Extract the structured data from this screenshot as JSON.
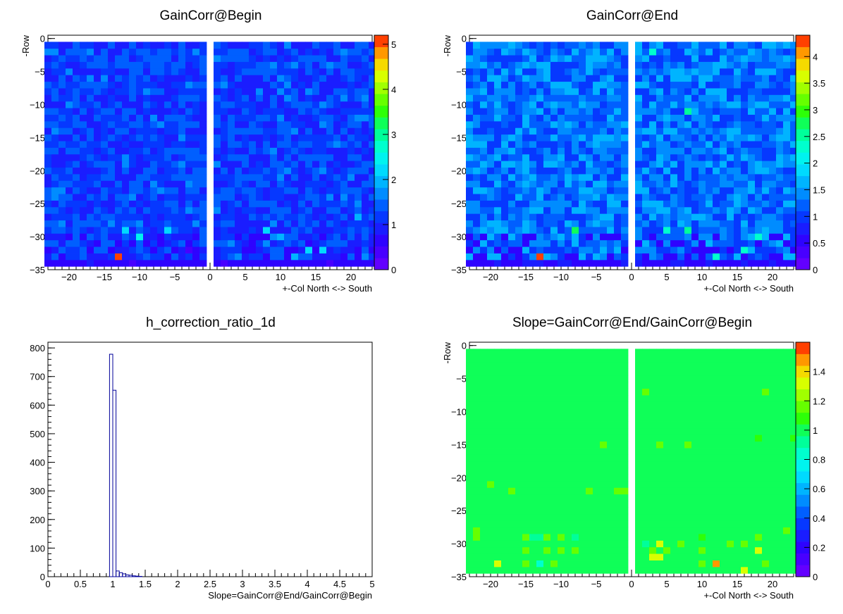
{
  "chart_data": [
    {
      "type": "heatmap",
      "title": "GainCorr@Begin",
      "xlabel": "+-Col North <-> South",
      "ylabel": "-Row",
      "xlim": [
        -23,
        23
      ],
      "ylim": [
        -35,
        0.5
      ],
      "xticks": [
        -20,
        -15,
        -10,
        -5,
        0,
        5,
        10,
        15,
        20
      ],
      "xtick_labels": [
        "−20",
        "−15",
        "−10",
        "−5",
        "0",
        "5",
        "10",
        "15",
        "20"
      ],
      "yticks": [
        0,
        -5,
        -10,
        -15,
        -20,
        -25,
        -30,
        -35
      ],
      "ytick_labels": [
        "0",
        "−5",
        "−10",
        "−15",
        "−20",
        "−25",
        "−30",
        "−35"
      ],
      "grid": false,
      "columns": {
        "north": [
          -23,
          -1
        ],
        "south": [
          1,
          23
        ]
      },
      "rows": [
        -34,
        -1
      ],
      "color_scale": {
        "min": 0,
        "max": 5.2,
        "ticks": [
          0,
          1,
          2,
          3,
          4,
          5
        ],
        "tick_labels": [
          "0",
          "1",
          "2",
          "3",
          "4",
          "5"
        ]
      },
      "typical_value": 1.2,
      "value_spread": 0.4,
      "low_rows_value": 0.65,
      "cells": [
        {
          "col": -13,
          "row": -33,
          "value": 5.0
        },
        {
          "col": -10,
          "row": -30,
          "value": 2.4
        },
        {
          "col": -6,
          "row": -29,
          "value": 2.3
        },
        {
          "col": -12,
          "row": -29,
          "value": 2.2
        },
        {
          "col": -3,
          "row": -32,
          "value": 0.5
        },
        {
          "col": 8,
          "row": -29,
          "value": 2.2
        },
        {
          "col": 16,
          "row": -32,
          "value": 2.1
        },
        {
          "col": 21,
          "row": -27,
          "value": 2.0
        },
        {
          "col": 10,
          "row": -30,
          "value": 2.0
        },
        {
          "col": 14,
          "row": -32,
          "value": 2.1
        },
        {
          "col": 12,
          "row": -33,
          "value": 1.9
        }
      ]
    },
    {
      "type": "heatmap",
      "title": "GainCorr@End",
      "xlabel": "+-Col North <-> South",
      "ylabel": "-Row",
      "xlim": [
        -23,
        23
      ],
      "ylim": [
        -35,
        0.5
      ],
      "xticks": [
        -20,
        -15,
        -10,
        -5,
        0,
        5,
        10,
        15,
        20
      ],
      "xtick_labels": [
        "−20",
        "−15",
        "−10",
        "−5",
        "0",
        "5",
        "10",
        "15",
        "20"
      ],
      "yticks": [
        0,
        -5,
        -10,
        -15,
        -20,
        -25,
        -30,
        -35
      ],
      "ytick_labels": [
        "0",
        "−5",
        "−10",
        "−15",
        "−20",
        "−25",
        "−30",
        "−35"
      ],
      "grid": false,
      "columns": {
        "north": [
          -23,
          -1
        ],
        "south": [
          1,
          23
        ]
      },
      "rows": [
        -34,
        -1
      ],
      "color_scale": {
        "min": 0,
        "max": 4.4,
        "ticks": [
          0,
          0.5,
          1,
          1.5,
          2,
          2.5,
          3,
          3.5,
          4
        ],
        "tick_labels": [
          "0",
          "0.5",
          "1",
          "1.5",
          "2",
          "2.5",
          "3",
          "3.5",
          "4"
        ]
      },
      "typical_value": 1.3,
      "value_spread": 0.4,
      "low_rows_value": 0.6,
      "cells": [
        {
          "col": -13,
          "row": -33,
          "value": 4.3
        },
        {
          "col": -8,
          "row": -29,
          "value": 2.8
        },
        {
          "col": 8,
          "row": -29,
          "value": 2.6
        },
        {
          "col": 5,
          "row": -29,
          "value": 2.4
        },
        {
          "col": 18,
          "row": -30,
          "value": 2.3
        },
        {
          "col": 8,
          "row": -11,
          "value": 2.6
        },
        {
          "col": 3,
          "row": -2,
          "value": 2.4
        },
        {
          "col": 12,
          "row": -33,
          "value": 2.3
        },
        {
          "col": 16,
          "row": -32,
          "value": 2.2
        }
      ]
    },
    {
      "type": "bar",
      "title": "h_correction_ratio_1d",
      "xlabel": "Slope=GainCorr@End/GainCorr@Begin",
      "ylabel": "",
      "xlim": [
        0,
        5
      ],
      "ylim": [
        0,
        820
      ],
      "xticks": [
        0,
        0.5,
        1,
        1.5,
        2,
        2.5,
        3,
        3.5,
        4,
        4.5,
        5
      ],
      "xtick_labels": [
        "0",
        "0.5",
        "1",
        "1.5",
        "2",
        "2.5",
        "3",
        "3.5",
        "4",
        "4.5",
        "5"
      ],
      "yticks": [
        0,
        100,
        200,
        300,
        400,
        500,
        600,
        700,
        800
      ],
      "ytick_labels": [
        "0",
        "100",
        "200",
        "300",
        "400",
        "500",
        "600",
        "700",
        "800"
      ],
      "grid": false,
      "bin_width": 0.05,
      "bins": [
        {
          "x0": 0.9,
          "value": 0
        },
        {
          "x0": 0.95,
          "value": 778
        },
        {
          "x0": 1.0,
          "value": 652
        },
        {
          "x0": 1.05,
          "value": 20
        },
        {
          "x0": 1.1,
          "value": 14
        },
        {
          "x0": 1.15,
          "value": 10
        },
        {
          "x0": 1.2,
          "value": 6
        },
        {
          "x0": 1.25,
          "value": 5
        },
        {
          "x0": 1.3,
          "value": 3
        },
        {
          "x0": 1.35,
          "value": 2
        },
        {
          "x0": 1.4,
          "value": 1
        },
        {
          "x0": 1.45,
          "value": 0
        }
      ]
    },
    {
      "type": "heatmap",
      "title": "Slope=GainCorr@End/GainCorr@Begin",
      "xlabel": "+-Col North <-> South",
      "ylabel": "-Row",
      "xlim": [
        -23,
        23
      ],
      "ylim": [
        -35,
        0.5
      ],
      "xticks": [
        -20,
        -15,
        -10,
        -5,
        0,
        5,
        10,
        15,
        20
      ],
      "xtick_labels": [
        "−20",
        "−15",
        "−10",
        "−5",
        "0",
        "5",
        "10",
        "15",
        "20"
      ],
      "yticks": [
        0,
        -5,
        -10,
        -15,
        -20,
        -25,
        -30,
        -35
      ],
      "ytick_labels": [
        "0",
        "−5",
        "−10",
        "−15",
        "−20",
        "−25",
        "−30",
        "−35"
      ],
      "grid": false,
      "columns": {
        "north": [
          -23,
          -1
        ],
        "south": [
          1,
          23
        ]
      },
      "rows": [
        -34,
        -1
      ],
      "color_scale": {
        "min": 0,
        "max": 1.6,
        "ticks": [
          0,
          0.2,
          0.4,
          0.6,
          0.8,
          1,
          1.2,
          1.4
        ],
        "tick_labels": [
          "0",
          "0.2",
          "0.4",
          "0.6",
          "0.8",
          "1",
          "1.2",
          "1.4"
        ]
      },
      "typical_value": 1.0,
      "value_spread": 0,
      "cells": [
        {
          "col": 2,
          "row": -7,
          "value": 1.2
        },
        {
          "col": 19,
          "row": -7,
          "value": 1.2
        },
        {
          "col": -4,
          "row": -15,
          "value": 1.2
        },
        {
          "col": 4,
          "row": -15,
          "value": 1.2
        },
        {
          "col": 8,
          "row": -15,
          "value": 1.2
        },
        {
          "col": -20,
          "row": -21,
          "value": 1.2
        },
        {
          "col": -17,
          "row": -22,
          "value": 1.2
        },
        {
          "col": -6,
          "row": -22,
          "value": 1.2
        },
        {
          "col": -2,
          "row": -22,
          "value": 1.2
        },
        {
          "col": -1,
          "row": -22,
          "value": 1.2
        },
        {
          "col": -22,
          "row": -28,
          "value": 1.2
        },
        {
          "col": -22,
          "row": -29,
          "value": 1.2
        },
        {
          "col": -15,
          "row": -29,
          "value": 1.2
        },
        {
          "col": -12,
          "row": -29,
          "value": 1.2
        },
        {
          "col": -10,
          "row": -29,
          "value": 1.2
        },
        {
          "col": -14,
          "row": -29,
          "value": 0.9
        },
        {
          "col": -13,
          "row": -29,
          "value": 0.9
        },
        {
          "col": -8,
          "row": -29,
          "value": 0.9
        },
        {
          "col": -15,
          "row": -31,
          "value": 1.2
        },
        {
          "col": -12,
          "row": -31,
          "value": 1.2
        },
        {
          "col": -10,
          "row": -31,
          "value": 1.2
        },
        {
          "col": -8,
          "row": -31,
          "value": 1.2
        },
        {
          "col": -19,
          "row": -33,
          "value": 1.3
        },
        {
          "col": -15,
          "row": -33,
          "value": 1.2
        },
        {
          "col": -13,
          "row": -33,
          "value": 0.85
        },
        {
          "col": -11,
          "row": -33,
          "value": 1.2
        },
        {
          "col": 2,
          "row": -30,
          "value": 0.9
        },
        {
          "col": 3,
          "row": -31,
          "value": 1.2
        },
        {
          "col": 4,
          "row": -30,
          "value": 1.3
        },
        {
          "col": 5,
          "row": -31,
          "value": 1.2
        },
        {
          "col": 7,
          "row": -30,
          "value": 1.2
        },
        {
          "col": 10,
          "row": -31,
          "value": 1.2
        },
        {
          "col": 4,
          "row": -32,
          "value": 1.3
        },
        {
          "col": 3,
          "row": -32,
          "value": 1.3
        },
        {
          "col": 12,
          "row": -33,
          "value": 1.5
        },
        {
          "col": 16,
          "row": -34,
          "value": 1.3
        },
        {
          "col": 18,
          "row": -31,
          "value": 1.3
        },
        {
          "col": 18,
          "row": -29,
          "value": 1.2
        },
        {
          "col": 22,
          "row": -28,
          "value": 1.2
        },
        {
          "col": 16,
          "row": -30,
          "value": 1.2
        },
        {
          "col": 14,
          "row": -30,
          "value": 1.2
        },
        {
          "col": 10,
          "row": -33,
          "value": 1.2
        },
        {
          "col": 19,
          "row": -33,
          "value": 1.2
        },
        {
          "col": 10,
          "row": -29,
          "value": 1.1
        },
        {
          "col": 18,
          "row": -14,
          "value": 1.1
        },
        {
          "col": 23,
          "row": -14,
          "value": 1.1
        }
      ]
    }
  ]
}
